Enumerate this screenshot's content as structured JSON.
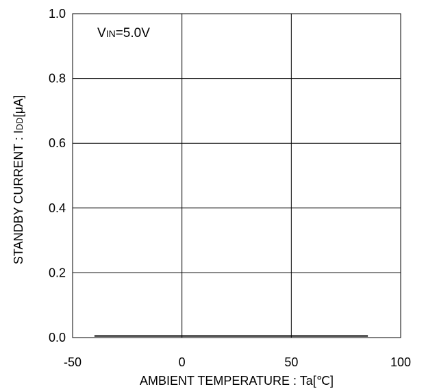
{
  "chart_data": {
    "type": "line",
    "xlabel_prefix": "AMBIENT TEMPERATURE : Ta[",
    "xlabel_unit": "℃",
    "xlabel_suffix": "]",
    "ylabel_prefix": "STANDBY CURRENT : I",
    "ylabel_sub": "DD",
    "ylabel_suffix": "[μA]",
    "xlim": [
      -50,
      100
    ],
    "ylim": [
      0.0,
      1.0
    ],
    "x_ticks": [
      "-50",
      "0",
      "50",
      "100"
    ],
    "y_ticks": [
      "0.0",
      "0.2",
      "0.4",
      "0.6",
      "0.8",
      "1.0"
    ],
    "grid": true,
    "annotation_main": "V",
    "annotation_sub": "IN",
    "annotation_rest": "=5.0V",
    "series": [
      {
        "x": [
          -40,
          85
        ],
        "y": [
          0.005,
          0.005
        ],
        "color": "#000000"
      }
    ]
  }
}
